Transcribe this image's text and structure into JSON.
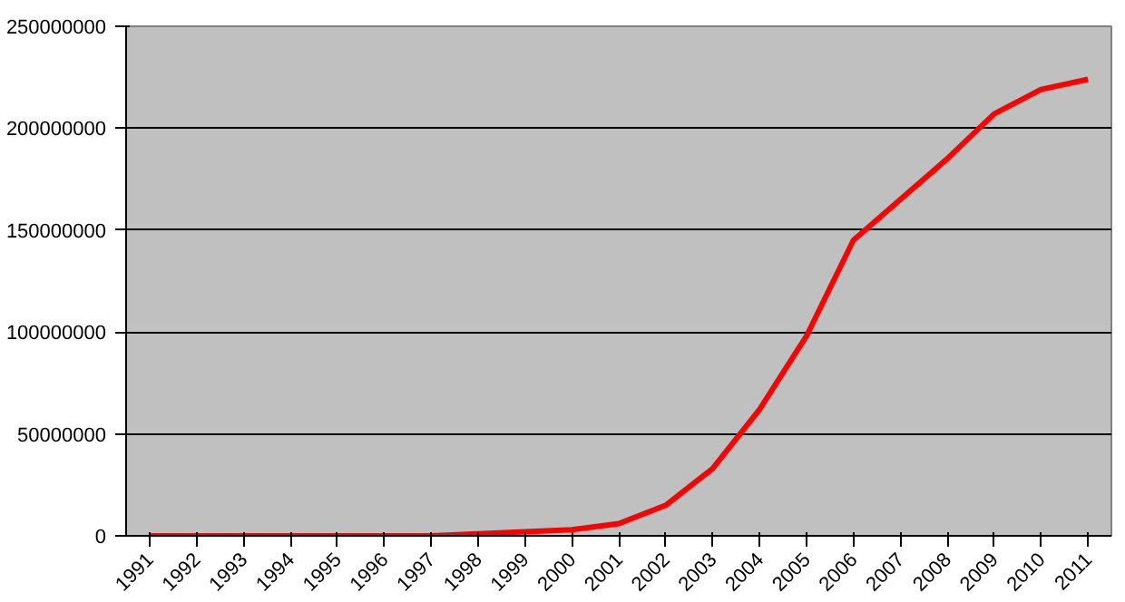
{
  "chart_data": {
    "type": "line",
    "categories": [
      "1991",
      "1992",
      "1993",
      "1994",
      "1995",
      "1996",
      "1997",
      "1998",
      "1999",
      "2000",
      "2001",
      "2002",
      "2003",
      "2004",
      "2005",
      "2006",
      "2007",
      "2008",
      "2009",
      "2010",
      "2011"
    ],
    "series": [
      {
        "color": "#ff0000",
        "values": [
          0,
          0,
          0,
          0,
          0,
          0,
          0,
          1000000,
          2000000,
          3000000,
          6000000,
          15000000,
          33000000,
          62000000,
          98000000,
          145000000,
          165000000,
          185000000,
          207000000,
          219000000,
          224000000
        ]
      }
    ],
    "ylim": [
      0,
      250000000
    ],
    "yticks": [
      0,
      50000000,
      100000000,
      150000000,
      200000000,
      250000000
    ],
    "grid": "y",
    "marker": "none",
    "line_style": "solid"
  }
}
